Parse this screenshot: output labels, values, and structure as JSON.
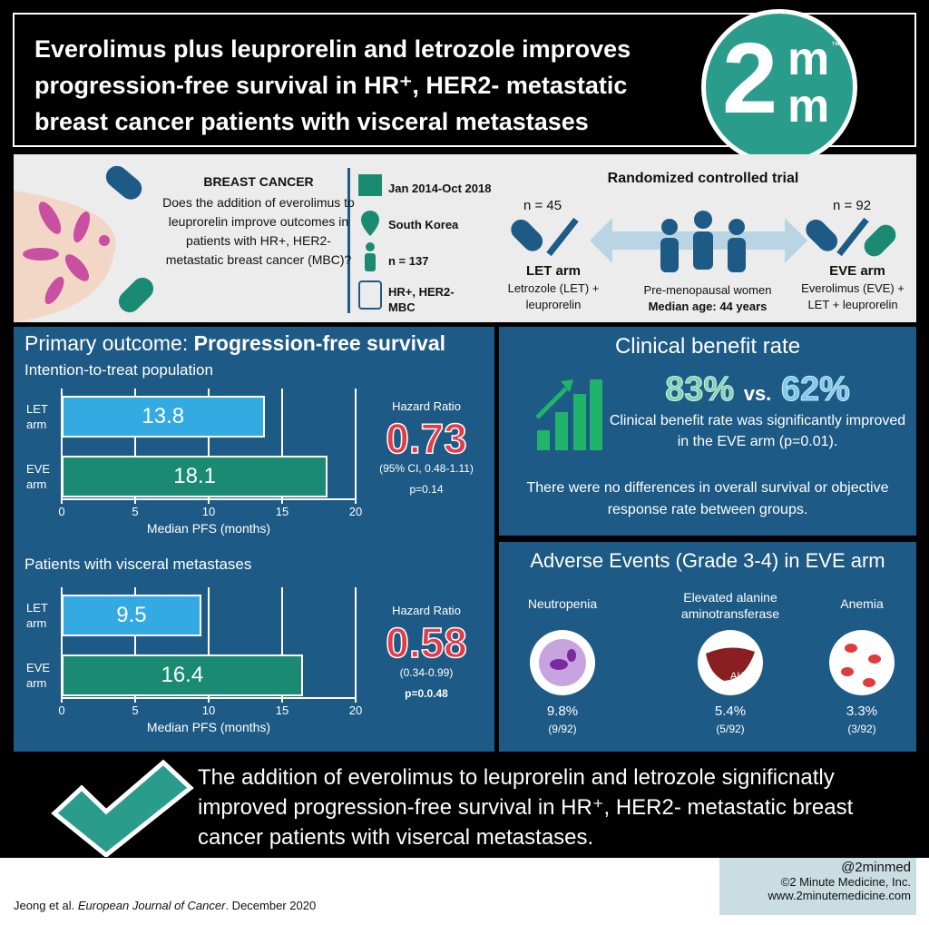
{
  "header": {
    "title": "Everolimus plus leuprorelin and letrozole improves progression-free survival in HR⁺, HER2- metastatic breast cancer patients with visceral metastases",
    "logo": {
      "main": "2",
      "top": "m",
      "bottom": "m",
      "tm": "™"
    }
  },
  "background": {
    "topic": "BREAST CANCER",
    "question": "Does the addition of everolimus to leuprorelin improve outcomes in patients with HR+, HER2-metastatic breast cancer (MBC)?",
    "details": [
      "Jan 2014-Oct 2018",
      "South Korea",
      "n = 137",
      "HR+, HER2-MBC"
    ],
    "trial": {
      "title": "Randomized controlled trial",
      "left": {
        "n": "n = 45",
        "name": "LET arm",
        "desc": "Letrozole (LET) + leuprorelin"
      },
      "center": {
        "population": "Pre-menopausal women",
        "age": "Median age: 44 years"
      },
      "right": {
        "n": "n = 92",
        "name": "EVE arm",
        "desc": "Everolimus (EVE) + LET + leuprorelin"
      }
    }
  },
  "primary": {
    "title_prefix": "Primary outcome: ",
    "title_bold": "Progression-free survival"
  },
  "chart_data": [
    {
      "type": "bar",
      "subtitle": "Intention-to-treat population",
      "categories": [
        "LET arm",
        "EVE arm"
      ],
      "values": [
        13.8,
        18.1
      ],
      "colors": [
        "#34aae2",
        "#1a8a72"
      ],
      "xlim": [
        0,
        20
      ],
      "xticks": [
        0,
        5,
        10,
        15,
        20
      ],
      "xlabel": "Median PFS (months)",
      "grid": true,
      "hr_label": "Hazard Ratio",
      "hr": 0.73,
      "ci": "(95% CI, 0.48-1.11)",
      "p": "p=0.14"
    },
    {
      "type": "bar",
      "subtitle": "Patients with visceral metastases",
      "categories": [
        "LET arm",
        "EVE arm"
      ],
      "values": [
        9.5,
        16.4
      ],
      "colors": [
        "#34aae2",
        "#1a8a72"
      ],
      "xlim": [
        0,
        20
      ],
      "xticks": [
        0,
        5,
        10,
        15,
        20
      ],
      "xlabel": "Median PFS (months)",
      "grid": true,
      "hr_label": "Hazard Ratio",
      "hr": 0.58,
      "ci": "(0.34-0.99)",
      "p": "p=0.0.48"
    }
  ],
  "clinical": {
    "title": "Clinical benefit rate",
    "rate_a": "83%",
    "vs": "vs.",
    "rate_b": "62%",
    "text1": "Clinical benefit rate was significantly improved in the EVE arm (p=0.01).",
    "text2": "There were no differences in overall survival or objective response rate between groups."
  },
  "adverse": {
    "title": "Adverse Events (Grade 3-4) in EVE arm",
    "items": [
      {
        "name": "Neutropenia",
        "pct": "9.8%",
        "frac": "(9/92)"
      },
      {
        "name": "Elevated alanine aminotransferase",
        "pct": "5.4%",
        "frac": "(5/92)",
        "icon_label": "ALT"
      },
      {
        "name": "Anemia",
        "pct": "3.3%",
        "frac": "(3/92)"
      }
    ]
  },
  "conclusion": "The addition of everolimus to leuprorelin and letrozole significnatly improved progression-free survival in HR⁺, HER2- metastatic breast cancer patients with visercal metastases.",
  "footer": {
    "authors": "Jeong et al.",
    "journal": "European Journal of Cancer",
    "date": ". December 2020",
    "credits": [
      "@2minmed",
      "©2 Minute Medicine, Inc.",
      "www.2minutemedicine.com"
    ]
  }
}
